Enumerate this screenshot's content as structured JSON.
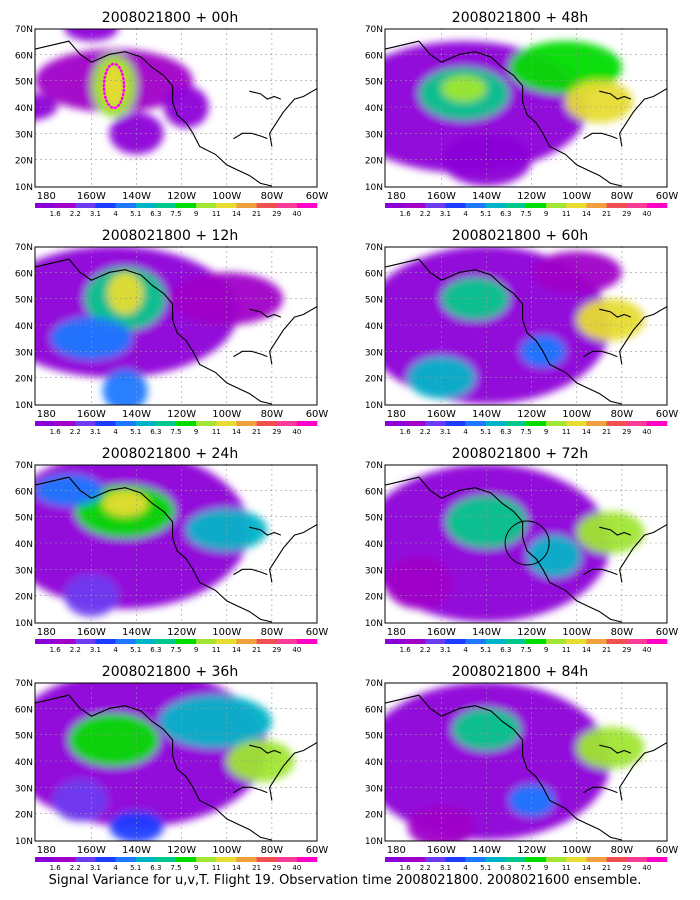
{
  "panels": [
    {
      "title": "2008021800 + 00h"
    },
    {
      "title": "2008021800 + 48h"
    },
    {
      "title": "2008021800 + 12h"
    },
    {
      "title": "2008021800 + 60h"
    },
    {
      "title": "2008021800 + 24h"
    },
    {
      "title": "2008021800 + 72h"
    },
    {
      "title": "2008021800 + 36h"
    },
    {
      "title": "2008021800 + 84h"
    }
  ],
  "axes": {
    "y_ticks": [
      "70N",
      "60N",
      "50N",
      "40N",
      "30N",
      "20N",
      "10N"
    ],
    "x_ticks": [
      "180",
      "160W",
      "140W",
      "120W",
      "100W",
      "80W",
      "60W"
    ]
  },
  "colorbar": {
    "labels": [
      "1.6",
      "2.2",
      "3.1",
      "4",
      "5.1",
      "6.3",
      "7.5",
      "9",
      "11",
      "14",
      "21",
      "29",
      "40"
    ],
    "colors": [
      "#8c00d8",
      "#a000c8",
      "#6e3cf0",
      "#1e3cff",
      "#1e78ff",
      "#00b4c8",
      "#00c88c",
      "#00dc00",
      "#a0e632",
      "#e6dc32",
      "#f0a03c",
      "#f05050",
      "#fa3c96",
      "#ff00c8"
    ]
  },
  "palette": {
    "background": "#ffffff",
    "coast": "#000000",
    "grid": "#999999",
    "marker": "#ff00ff"
  },
  "caption": "Signal Variance for u,v,T. Flight 19. Observation time 2008021800. 2008021600 ensemble."
}
